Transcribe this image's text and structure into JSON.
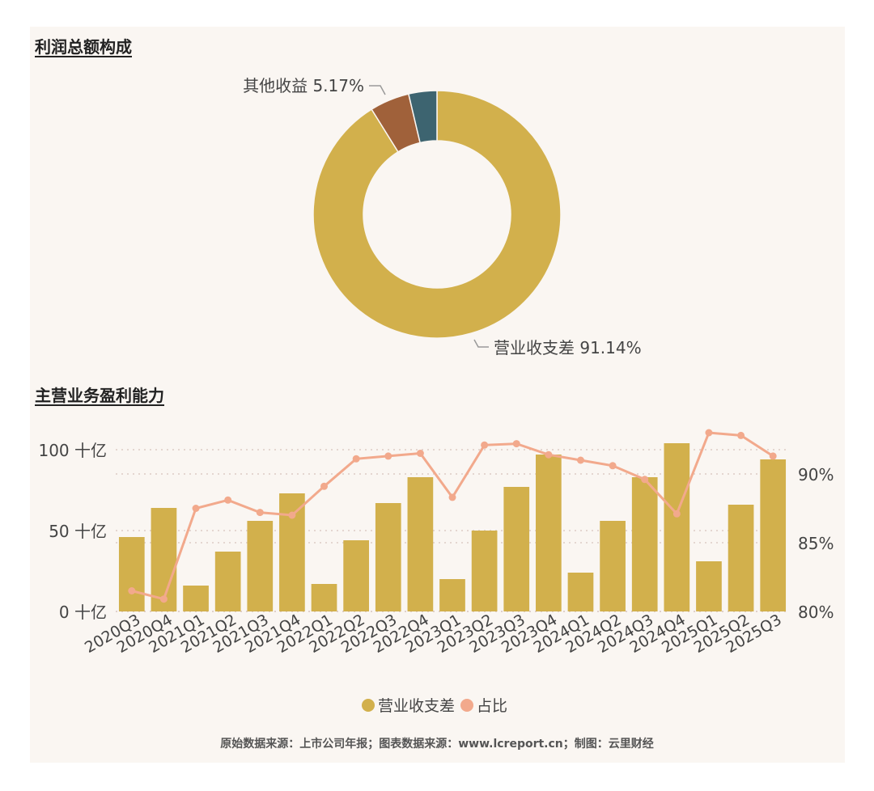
{
  "sections": {
    "donut_title": "利润总额构成",
    "bar_title": "主营业务盈利能力"
  },
  "source_note": "原始数据来源：上市公司年报；图表数据来源：www.lcreport.cn；制图：云里财经",
  "colors": {
    "gold": "#d2b04c",
    "brown": "#a0613a",
    "slate": "#3d6470",
    "salmon": "#f2a98c",
    "panel": "#faf6f2"
  },
  "chart_data": [
    {
      "type": "pie",
      "variant": "donut",
      "title": "利润总额构成",
      "slices": [
        {
          "label": "营业收支差",
          "value": 91.14,
          "display": "91.14%",
          "color": "#d2b04c"
        },
        {
          "label": "其他收益",
          "value": 5.17,
          "display": "5.17%",
          "color": "#a0613a"
        },
        {
          "label": "",
          "value": 3.69,
          "display": "",
          "color": "#3d6470"
        }
      ]
    },
    {
      "type": "bar",
      "title": "主营业务盈利能力",
      "categories": [
        "2020Q3",
        "2020Q4",
        "2021Q1",
        "2021Q2",
        "2021Q3",
        "2021Q4",
        "2022Q1",
        "2022Q2",
        "2022Q3",
        "2022Q4",
        "2023Q1",
        "2023Q2",
        "2023Q3",
        "2023Q4",
        "2024Q1",
        "2024Q2",
        "2024Q3",
        "2024Q4",
        "2025Q1",
        "2025Q2",
        "2025Q3"
      ],
      "series": [
        {
          "name": "营业收支差",
          "kind": "bar",
          "axis": "left",
          "color": "#d2b04c",
          "values": [
            46,
            64,
            16,
            37,
            56,
            73,
            17,
            44,
            67,
            83,
            20,
            50,
            77,
            97,
            24,
            56,
            83,
            104,
            31,
            66,
            94
          ]
        },
        {
          "name": "占比",
          "kind": "line",
          "axis": "right",
          "color": "#f2a98c",
          "values": [
            81.5,
            80.9,
            87.5,
            88.1,
            87.2,
            87.0,
            89.1,
            91.1,
            91.3,
            91.5,
            88.3,
            92.1,
            92.2,
            91.4,
            91.0,
            90.6,
            89.6,
            87.1,
            93.0,
            92.8,
            91.3
          ]
        }
      ],
      "y_left": {
        "range": [
          0,
          100
        ],
        "ticks": [
          0,
          50,
          100
        ],
        "tick_labels": [
          "0 十亿",
          "50 十亿",
          "100 十亿"
        ]
      },
      "y_right": {
        "range": [
          80,
          92
        ],
        "ticks": [
          80,
          85,
          90
        ],
        "tick_labels": [
          "80%",
          "85%",
          "90%"
        ]
      },
      "grid": true,
      "legend": {
        "placement": "bottom-center",
        "entries": [
          "营业收支差",
          "占比"
        ]
      }
    }
  ]
}
